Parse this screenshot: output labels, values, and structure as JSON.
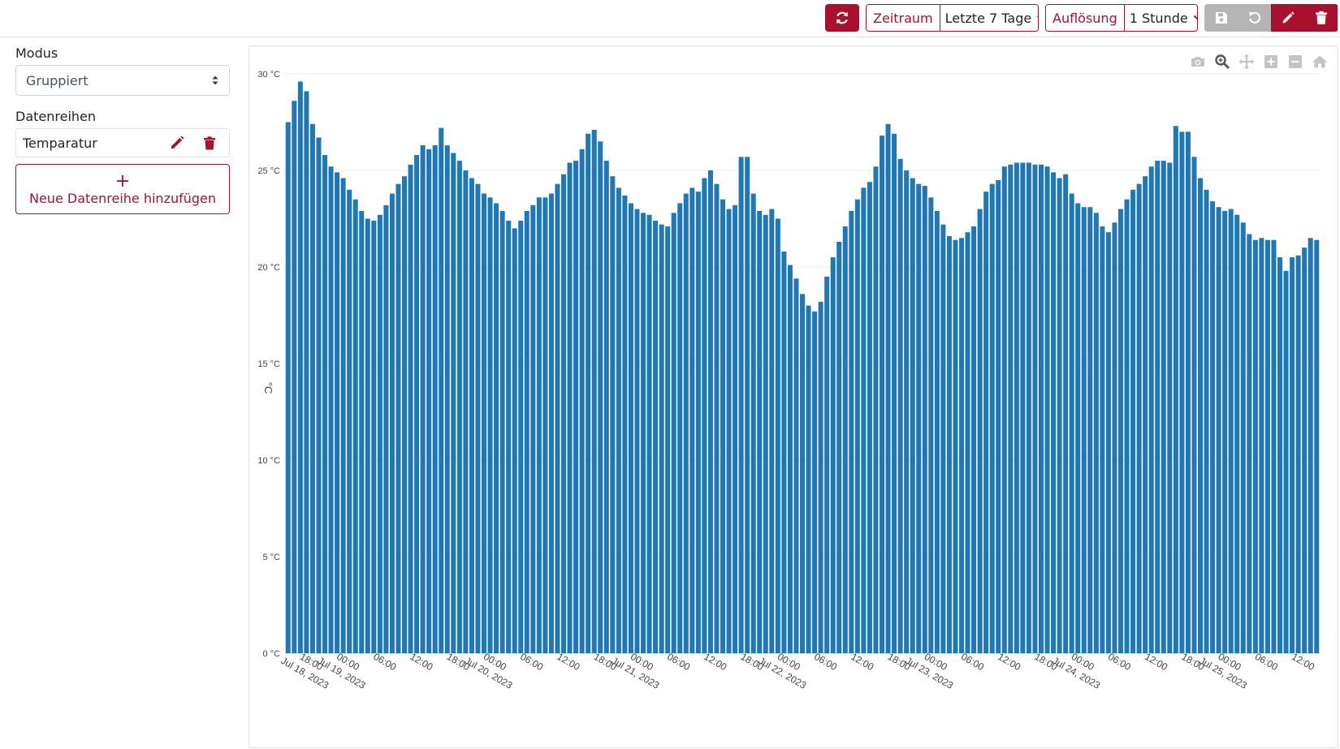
{
  "toolbar": {
    "refresh_icon": "refresh-icon",
    "zeitraum_label": "Zeitraum",
    "zeitraum_value": "Letzte 7 Tage",
    "aufloesung_label": "Auflösung",
    "aufloesung_value": "1 Stunde",
    "actions": [
      "save-icon",
      "reset-icon",
      "edit-icon",
      "trash-icon"
    ],
    "accent_color": "#a8102e",
    "disabled_color": "#b5b5b5"
  },
  "sidebar": {
    "modus_label": "Modus",
    "modus_value": "Gruppiert",
    "datenreihen_label": "Datenreihen",
    "series_item": "Temparatur",
    "add_label": "Neue Datenreihe hinzufügen",
    "add_plus": "+"
  },
  "modebar": [
    "camera-icon",
    "zoom-icon",
    "pan-icon",
    "zoom-in-icon",
    "zoom-out-icon",
    "home-icon"
  ],
  "chart_data": {
    "type": "bar",
    "ylabel": "°C",
    "ylim": [
      0,
      30
    ],
    "y_ticks": [
      {
        "value": 0,
        "label": "0 °C"
      },
      {
        "value": 5,
        "label": "5 °C"
      },
      {
        "value": 10,
        "label": "10 °C"
      },
      {
        "value": 15,
        "label": "15 °C"
      },
      {
        "value": 20,
        "label": "20 °C"
      },
      {
        "value": 25,
        "label": "25 °C"
      },
      {
        "value": 30,
        "label": "30 °C"
      }
    ],
    "x_start": "2023-07-18 15:00",
    "x_step_hours": 1,
    "x_ticks": [
      {
        "hour": 3,
        "l1": "18:00",
        "l2": "Jul 18, 2023"
      },
      {
        "hour": 9,
        "l1": "00:00",
        "l2": "Jul 19, 2023"
      },
      {
        "hour": 15,
        "l1": "06:00",
        "l2": ""
      },
      {
        "hour": 21,
        "l1": "12:00",
        "l2": ""
      },
      {
        "hour": 27,
        "l1": "18:00",
        "l2": ""
      },
      {
        "hour": 33,
        "l1": "00:00",
        "l2": "Jul 20, 2023"
      },
      {
        "hour": 39,
        "l1": "06:00",
        "l2": ""
      },
      {
        "hour": 45,
        "l1": "12:00",
        "l2": ""
      },
      {
        "hour": 51,
        "l1": "18:00",
        "l2": ""
      },
      {
        "hour": 57,
        "l1": "00:00",
        "l2": "Jul 21, 2023"
      },
      {
        "hour": 63,
        "l1": "06:00",
        "l2": ""
      },
      {
        "hour": 69,
        "l1": "12:00",
        "l2": ""
      },
      {
        "hour": 75,
        "l1": "18:00",
        "l2": ""
      },
      {
        "hour": 81,
        "l1": "00:00",
        "l2": "Jul 22, 2023"
      },
      {
        "hour": 87,
        "l1": "06:00",
        "l2": ""
      },
      {
        "hour": 93,
        "l1": "12:00",
        "l2": ""
      },
      {
        "hour": 99,
        "l1": "18:00",
        "l2": ""
      },
      {
        "hour": 105,
        "l1": "00:00",
        "l2": "Jul 23, 2023"
      },
      {
        "hour": 111,
        "l1": "06:00",
        "l2": ""
      },
      {
        "hour": 117,
        "l1": "12:00",
        "l2": ""
      },
      {
        "hour": 123,
        "l1": "18:00",
        "l2": ""
      },
      {
        "hour": 129,
        "l1": "00:00",
        "l2": "Jul 24, 2023"
      },
      {
        "hour": 135,
        "l1": "06:00",
        "l2": ""
      },
      {
        "hour": 141,
        "l1": "12:00",
        "l2": ""
      },
      {
        "hour": 147,
        "l1": "18:00",
        "l2": ""
      },
      {
        "hour": 153,
        "l1": "00:00",
        "l2": "Jul 25, 2023"
      },
      {
        "hour": 159,
        "l1": "06:00",
        "l2": ""
      },
      {
        "hour": 165,
        "l1": "12:00",
        "l2": ""
      }
    ],
    "color": "#1f77b4",
    "values": [
      27.5,
      28.6,
      29.6,
      29.1,
      27.4,
      26.7,
      25.8,
      25.2,
      24.9,
      24.6,
      24.0,
      23.5,
      22.9,
      22.5,
      22.4,
      22.7,
      23.2,
      23.8,
      24.3,
      24.7,
      25.3,
      25.8,
      26.3,
      26.1,
      26.3,
      27.2,
      26.3,
      25.9,
      25.5,
      25.0,
      24.6,
      24.3,
      23.8,
      23.6,
      23.3,
      22.9,
      22.4,
      22.0,
      22.4,
      22.9,
      23.2,
      23.6,
      23.6,
      23.8,
      24.3,
      24.8,
      25.4,
      25.5,
      26.1,
      26.9,
      27.1,
      26.5,
      25.5,
      24.7,
      24.1,
      23.7,
      23.3,
      23.0,
      22.8,
      22.7,
      22.4,
      22.2,
      22.1,
      22.8,
      23.3,
      23.8,
      24.1,
      23.9,
      24.6,
      25.0,
      24.3,
      23.5,
      23.0,
      23.2,
      25.7,
      25.7,
      23.8,
      22.9,
      22.7,
      23.0,
      22.5,
      20.8,
      20.1,
      19.4,
      18.6,
      18.0,
      17.7,
      18.2,
      19.5,
      20.5,
      21.3,
      22.1,
      22.9,
      23.5,
      24.1,
      24.4,
      25.2,
      26.8,
      27.4,
      26.9,
      25.6,
      25.0,
      24.6,
      24.3,
      24.2,
      23.6,
      22.9,
      22.2,
      21.6,
      21.4,
      21.5,
      21.8,
      22.1,
      23.0,
      23.9,
      24.3,
      24.5,
      25.2,
      25.3,
      25.4,
      25.4,
      25.4,
      25.3,
      25.3,
      25.2,
      24.9,
      24.6,
      24.8,
      23.8,
      23.3,
      23.1,
      23.1,
      22.8,
      22.1,
      21.8,
      22.3,
      23.0,
      23.5,
      24.0,
      24.3,
      24.7,
      25.2,
      25.5,
      25.5,
      25.4,
      27.3,
      27.0,
      27.0,
      25.7,
      24.6,
      24.0,
      23.4,
      23.1,
      22.9,
      23.0,
      22.7,
      22.3,
      21.7,
      21.4,
      21.5,
      21.4,
      21.4,
      20.5,
      19.8,
      20.5,
      20.6,
      21.0,
      21.5,
      21.4
    ]
  }
}
